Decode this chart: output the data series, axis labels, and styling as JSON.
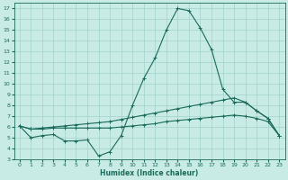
{
  "xlabel": "Humidex (Indice chaleur)",
  "bg_color": "#c8ebe5",
  "grid_color": "#a0d4cc",
  "line_color": "#1a6b5a",
  "xlim": [
    -0.5,
    23.5
  ],
  "ylim": [
    3,
    17.5
  ],
  "yticks": [
    3,
    4,
    5,
    6,
    7,
    8,
    9,
    10,
    11,
    12,
    13,
    14,
    15,
    16,
    17
  ],
  "xticks": [
    0,
    1,
    2,
    3,
    4,
    5,
    6,
    7,
    8,
    9,
    10,
    11,
    12,
    13,
    14,
    15,
    16,
    17,
    18,
    19,
    20,
    21,
    22,
    23
  ],
  "series1_spike": {
    "x": [
      0,
      1,
      2,
      3,
      4,
      5,
      6,
      7,
      8,
      9,
      10,
      11,
      12,
      13,
      14,
      15,
      16,
      17,
      18,
      19,
      20,
      21,
      22,
      23
    ],
    "y": [
      6.1,
      5.0,
      5.2,
      5.3,
      4.7,
      4.7,
      4.8,
      3.3,
      3.7,
      5.2,
      8.0,
      10.5,
      12.4,
      15.0,
      17.0,
      16.8,
      15.2,
      13.2,
      9.5,
      8.3,
      8.3,
      7.5,
      6.8,
      5.2
    ]
  },
  "series2_upper": {
    "x": [
      0,
      1,
      2,
      3,
      4,
      5,
      6,
      7,
      8,
      9,
      10,
      11,
      12,
      13,
      14,
      15,
      16,
      17,
      18,
      19,
      20,
      21,
      22,
      23
    ],
    "y": [
      6.1,
      5.8,
      5.9,
      6.0,
      6.1,
      6.2,
      6.3,
      6.4,
      6.5,
      6.7,
      6.9,
      7.1,
      7.3,
      7.5,
      7.7,
      7.9,
      8.1,
      8.3,
      8.5,
      8.7,
      8.3,
      7.5,
      6.8,
      5.2
    ]
  },
  "series3_lower": {
    "x": [
      0,
      1,
      2,
      3,
      4,
      5,
      6,
      7,
      8,
      9,
      10,
      11,
      12,
      13,
      14,
      15,
      16,
      17,
      18,
      19,
      20,
      21,
      22,
      23
    ],
    "y": [
      6.1,
      5.8,
      5.8,
      5.9,
      5.9,
      5.9,
      5.9,
      5.9,
      5.9,
      6.0,
      6.1,
      6.2,
      6.3,
      6.5,
      6.6,
      6.7,
      6.8,
      6.9,
      7.0,
      7.1,
      7.0,
      6.8,
      6.5,
      5.2
    ]
  }
}
